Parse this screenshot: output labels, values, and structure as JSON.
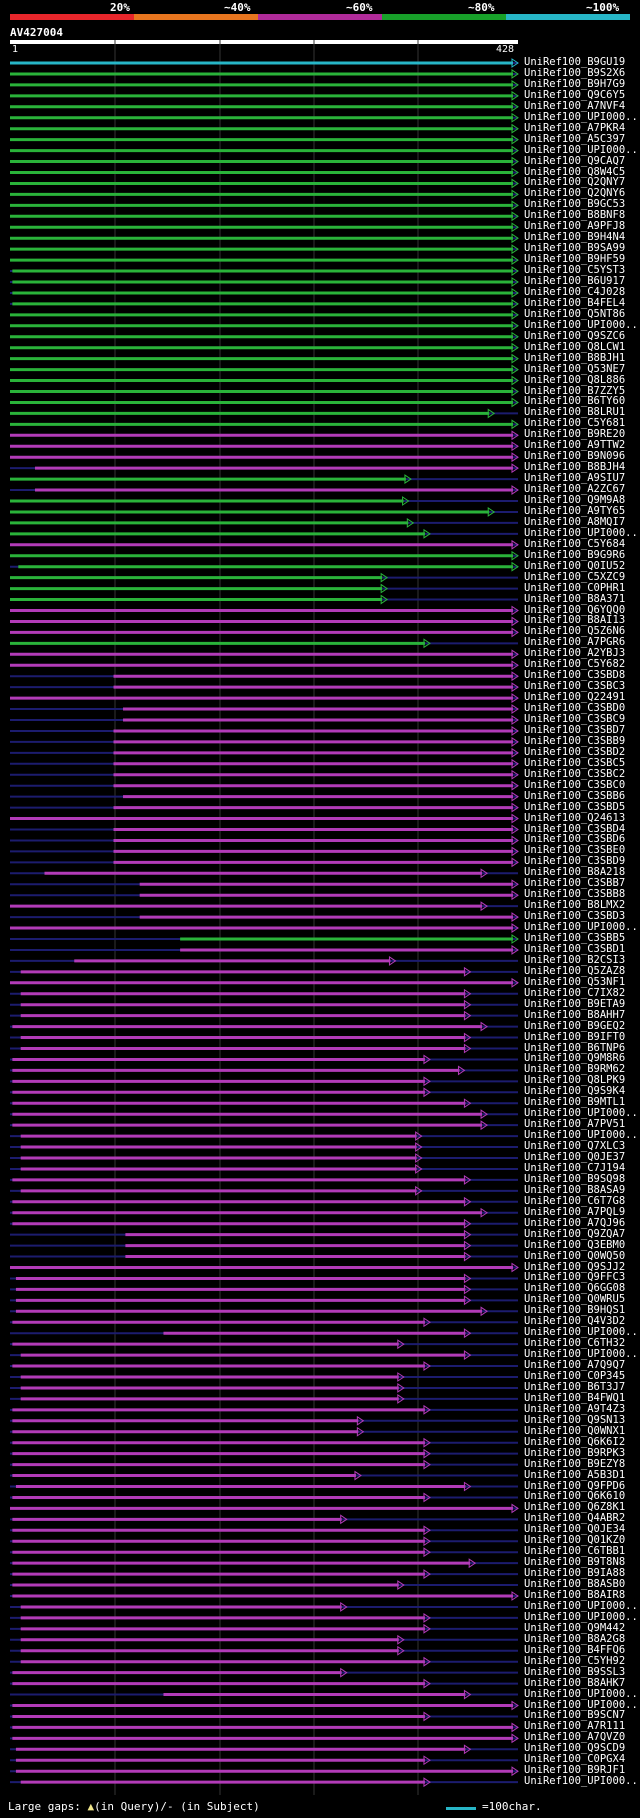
{
  "query": {
    "name": "AV427004",
    "start": "1",
    "end": "428",
    "length": 428
  },
  "identity_scale": {
    "labels": [
      "20%",
      "~40%",
      "~60%",
      "~80%",
      "~100%"
    ],
    "colors": [
      "#e8262b",
      "#e8761f",
      "#b12b9a",
      "#18a12a",
      "#27b6c7"
    ]
  },
  "track_colors": {
    "cyan": "#27b6c7",
    "green": "#2ab33a",
    "magenta": "#b23bb8",
    "dim": "#1c1c6e",
    "red": "#b21818"
  },
  "hits": [
    {
      "name": "UniRef100_B9GU19",
      "start": 1,
      "end": 428,
      "color": "cyan"
    },
    {
      "name": "UniRef100_B9S2X6",
      "start": 1,
      "end": 428,
      "color": "green"
    },
    {
      "name": "UniRef100_B9H7G9",
      "start": 1,
      "end": 428,
      "color": "green"
    },
    {
      "name": "UniRef100_Q9C6Y5",
      "start": 1,
      "end": 428,
      "color": "green"
    },
    {
      "name": "UniRef100_A7NVF4",
      "start": 1,
      "end": 428,
      "color": "green"
    },
    {
      "name": "UniRef100_UPI000...",
      "start": 1,
      "end": 428,
      "color": "green"
    },
    {
      "name": "UniRef100_A7PKR4",
      "start": 1,
      "end": 428,
      "color": "green"
    },
    {
      "name": "UniRef100_A5C397",
      "start": 1,
      "end": 428,
      "color": "green"
    },
    {
      "name": "UniRef100_UPI000...",
      "start": 1,
      "end": 428,
      "color": "green"
    },
    {
      "name": "UniRef100_Q9CAQ7",
      "start": 1,
      "end": 428,
      "color": "green"
    },
    {
      "name": "UniRef100_Q8W4C5",
      "start": 1,
      "end": 428,
      "color": "green"
    },
    {
      "name": "UniRef100_Q2QNY7",
      "start": 1,
      "end": 428,
      "color": "green"
    },
    {
      "name": "UniRef100_Q2QNY6",
      "start": 1,
      "end": 428,
      "color": "green"
    },
    {
      "name": "UniRef100_B9GC53",
      "start": 1,
      "end": 428,
      "color": "green"
    },
    {
      "name": "UniRef100_B8BNF8",
      "start": 1,
      "end": 428,
      "color": "green"
    },
    {
      "name": "UniRef100_A9PFJ8",
      "start": 1,
      "end": 428,
      "color": "green"
    },
    {
      "name": "UniRef100_B9H4N4",
      "start": 1,
      "end": 428,
      "color": "green"
    },
    {
      "name": "UniRef100_B9SA99",
      "start": 1,
      "end": 428,
      "color": "green"
    },
    {
      "name": "UniRef100_B9HF59",
      "start": 1,
      "end": 428,
      "color": "green"
    },
    {
      "name": "UniRef100_C5YST3",
      "start": 3,
      "end": 428,
      "color": "green"
    },
    {
      "name": "UniRef100_B6U917",
      "start": 3,
      "end": 428,
      "color": "green"
    },
    {
      "name": "UniRef100_C4J028",
      "start": 3,
      "end": 428,
      "color": "green"
    },
    {
      "name": "UniRef100_B4FEL4",
      "start": 3,
      "end": 428,
      "color": "green"
    },
    {
      "name": "UniRef100_Q5NT86",
      "start": 1,
      "end": 428,
      "color": "green"
    },
    {
      "name": "UniRef100_UPI000...",
      "start": 1,
      "end": 428,
      "color": "green"
    },
    {
      "name": "UniRef100_Q9SZC6",
      "start": 1,
      "end": 428,
      "color": "green"
    },
    {
      "name": "UniRef100_Q8LCW1",
      "start": 1,
      "end": 428,
      "color": "green"
    },
    {
      "name": "UniRef100_B8BJH1",
      "start": 1,
      "end": 428,
      "color": "green"
    },
    {
      "name": "UniRef100_Q53NE7",
      "start": 1,
      "end": 428,
      "color": "green"
    },
    {
      "name": "UniRef100_Q8L886",
      "start": 1,
      "end": 428,
      "color": "green"
    },
    {
      "name": "UniRef100_B7ZZY5",
      "start": 1,
      "end": 428,
      "color": "green"
    },
    {
      "name": "UniRef100_B6TY60",
      "start": 1,
      "end": 428,
      "color": "green"
    },
    {
      "name": "UniRef100_B8LRU1",
      "start": 1,
      "end": 408,
      "color": "green"
    },
    {
      "name": "UniRef100_C5Y681",
      "start": 1,
      "end": 428,
      "color": "green"
    },
    {
      "name": "UniRef100_B9RE20",
      "start": 1,
      "end": 428,
      "color": "magenta"
    },
    {
      "name": "UniRef100_A9TTW2",
      "start": 1,
      "end": 428,
      "color": "magenta"
    },
    {
      "name": "UniRef100_B9N096",
      "start": 1,
      "end": 428,
      "color": "magenta"
    },
    {
      "name": "UniRef100_B8BJH4",
      "start": 22,
      "end": 428,
      "color": "magenta"
    },
    {
      "name": "UniRef100_A9SIU7",
      "start": 1,
      "end": 338,
      "color": "green"
    },
    {
      "name": "UniRef100_A2ZC67",
      "start": 22,
      "end": 428,
      "color": "magenta"
    },
    {
      "name": "UniRef100_Q9M9A8",
      "start": 1,
      "end": 336,
      "color": "green"
    },
    {
      "name": "UniRef100_A9TY65",
      "start": 1,
      "end": 408,
      "color": "green"
    },
    {
      "name": "UniRef100_A8MQI7",
      "start": 1,
      "end": 340,
      "color": "green"
    },
    {
      "name": "UniRef100_UPI000...",
      "start": 1,
      "end": 354,
      "color": "green"
    },
    {
      "name": "UniRef100_C5Y684",
      "start": 1,
      "end": 428,
      "color": "magenta"
    },
    {
      "name": "UniRef100_B9G9R6",
      "start": 1,
      "end": 428,
      "color": "green"
    },
    {
      "name": "UniRef100_Q0IU52",
      "start": 8,
      "end": 428,
      "color": "green"
    },
    {
      "name": "UniRef100_C5XZC9",
      "start": 1,
      "end": 318,
      "color": "green"
    },
    {
      "name": "UniRef100_C0PHR1",
      "start": 1,
      "end": 318,
      "color": "green"
    },
    {
      "name": "UniRef100_B8A371",
      "start": 1,
      "end": 318,
      "color": "green"
    },
    {
      "name": "UniRef100_Q6YQQ0",
      "start": 1,
      "end": 428,
      "color": "magenta"
    },
    {
      "name": "UniRef100_B8AI13",
      "start": 1,
      "end": 428,
      "color": "magenta"
    },
    {
      "name": "UniRef100_Q5Z6N6",
      "start": 1,
      "end": 428,
      "color": "magenta"
    },
    {
      "name": "UniRef100_A7PGR6",
      "start": 1,
      "end": 354,
      "color": "green"
    },
    {
      "name": "UniRef100_A2YBJ3",
      "start": 1,
      "end": 428,
      "color": "magenta"
    },
    {
      "name": "UniRef100_C5Y682",
      "start": 1,
      "end": 428,
      "color": "magenta"
    },
    {
      "name": "UniRef100_C3SBD8",
      "start": 88,
      "end": 428,
      "color": "magenta"
    },
    {
      "name": "UniRef100_C3SBC3",
      "start": 88,
      "end": 428,
      "color": "magenta"
    },
    {
      "name": "UniRef100_Q22491",
      "start": 1,
      "end": 428,
      "color": "magenta"
    },
    {
      "name": "UniRef100_C3SBD0",
      "start": 96,
      "end": 428,
      "color": "magenta"
    },
    {
      "name": "UniRef100_C3SBC9",
      "start": 96,
      "end": 428,
      "color": "magenta"
    },
    {
      "name": "UniRef100_C3SBD7",
      "start": 88,
      "end": 428,
      "color": "magenta"
    },
    {
      "name": "UniRef100_C3SBB9",
      "start": 88,
      "end": 428,
      "color": "magenta"
    },
    {
      "name": "UniRef100_C3SBD2",
      "start": 88,
      "end": 428,
      "color": "magenta"
    },
    {
      "name": "UniRef100_C3SBC5",
      "start": 88,
      "end": 428,
      "color": "magenta"
    },
    {
      "name": "UniRef100_C3SBC2",
      "start": 88,
      "end": 428,
      "color": "magenta"
    },
    {
      "name": "UniRef100_C3SBC0",
      "start": 88,
      "end": 428,
      "color": "magenta"
    },
    {
      "name": "UniRef100_C3SBB6",
      "start": 96,
      "end": 428,
      "color": "magenta"
    },
    {
      "name": "UniRef100_C3SBD5",
      "start": 88,
      "end": 428,
      "color": "magenta"
    },
    {
      "name": "UniRef100_Q24613",
      "start": 1,
      "end": 428,
      "color": "magenta"
    },
    {
      "name": "UniRef100_C3SBD4",
      "start": 88,
      "end": 428,
      "color": "magenta"
    },
    {
      "name": "UniRef100_C3SBD6",
      "start": 88,
      "end": 428,
      "color": "magenta"
    },
    {
      "name": "UniRef100_C3SBE0",
      "start": 88,
      "end": 428,
      "color": "magenta"
    },
    {
      "name": "UniRef100_C3SBD9",
      "start": 88,
      "end": 428,
      "color": "magenta"
    },
    {
      "name": "UniRef100_B8A218",
      "start": 30,
      "end": 402,
      "color": "magenta"
    },
    {
      "name": "UniRef100_C3SBB7",
      "start": 110,
      "end": 428,
      "color": "magenta"
    },
    {
      "name": "UniRef100_C3SBB8",
      "start": 110,
      "end": 428,
      "color": "magenta"
    },
    {
      "name": "UniRef100_B8LMX2",
      "start": 1,
      "end": 402,
      "color": "magenta"
    },
    {
      "name": "UniRef100_C3SBD3",
      "start": 110,
      "end": 428,
      "color": "magenta"
    },
    {
      "name": "UniRef100_UPI000...",
      "start": 1,
      "end": 428,
      "color": "magenta"
    },
    {
      "name": "UniRef100_C3SBB5",
      "start": 144,
      "end": 428,
      "color": "green"
    },
    {
      "name": "UniRef100_C3SBD1",
      "start": 144,
      "end": 428,
      "color": "magenta"
    },
    {
      "name": "UniRef100_B2CSI3",
      "start": 55,
      "end": 325,
      "color": "magenta"
    },
    {
      "name": "UniRef100_Q5ZAZ8",
      "start": 10,
      "end": 388,
      "color": "magenta"
    },
    {
      "name": "UniRef100_Q53NF1",
      "start": 1,
      "end": 428,
      "color": "magenta"
    },
    {
      "name": "UniRef100_C7IX82",
      "start": 10,
      "end": 388,
      "color": "magenta"
    },
    {
      "name": "UniRef100_B9ETA9",
      "start": 10,
      "end": 388,
      "color": "magenta"
    },
    {
      "name": "UniRef100_B8AHH7",
      "start": 10,
      "end": 388,
      "color": "magenta"
    },
    {
      "name": "UniRef100_B9GEQ2",
      "start": 3,
      "end": 402,
      "color": "magenta"
    },
    {
      "name": "UniRef100_B9IFT0",
      "start": 10,
      "end": 388,
      "color": "magenta"
    },
    {
      "name": "UniRef100_B6TNP6",
      "start": 10,
      "end": 388,
      "color": "magenta"
    },
    {
      "name": "UniRef100_Q9M8R6",
      "start": 3,
      "end": 354,
      "color": "magenta"
    },
    {
      "name": "UniRef100_B9RM62",
      "start": 3,
      "end": 383,
      "color": "magenta"
    },
    {
      "name": "UniRef100_Q8LPK9",
      "start": 3,
      "end": 354,
      "color": "magenta"
    },
    {
      "name": "UniRef100_Q9S9K4",
      "start": 3,
      "end": 354,
      "color": "magenta"
    },
    {
      "name": "UniRef100_B9MTL1",
      "start": 3,
      "end": 388,
      "color": "magenta"
    },
    {
      "name": "UniRef100_UPI000...",
      "start": 3,
      "end": 402,
      "color": "magenta"
    },
    {
      "name": "UniRef100_A7PV51",
      "start": 3,
      "end": 402,
      "color": "magenta"
    },
    {
      "name": "UniRef100_UPI000...",
      "start": 10,
      "end": 347,
      "color": "magenta"
    },
    {
      "name": "UniRef100_Q7XLC3",
      "start": 10,
      "end": 347,
      "color": "magenta"
    },
    {
      "name": "UniRef100_Q0JE37",
      "start": 10,
      "end": 347,
      "color": "magenta"
    },
    {
      "name": "UniRef100_C7J194",
      "start": 10,
      "end": 347,
      "color": "magenta"
    },
    {
      "name": "UniRef100_B9SQ98",
      "start": 3,
      "end": 388,
      "color": "magenta"
    },
    {
      "name": "UniRef100_B8ASA9",
      "start": 10,
      "end": 347,
      "color": "magenta"
    },
    {
      "name": "UniRef100_C6T7G8",
      "start": 3,
      "end": 388,
      "color": "magenta"
    },
    {
      "name": "UniRef100_A7PQL9",
      "start": 3,
      "end": 402,
      "color": "magenta"
    },
    {
      "name": "UniRef100_A7QJ96",
      "start": 3,
      "end": 388,
      "color": "magenta"
    },
    {
      "name": "UniRef100_Q9ZQA7",
      "start": 98,
      "end": 388,
      "color": "magenta"
    },
    {
      "name": "UniRef100_Q3EBM0",
      "start": 98,
      "end": 388,
      "color": "magenta"
    },
    {
      "name": "UniRef100_Q0WQ50",
      "start": 98,
      "end": 388,
      "color": "magenta"
    },
    {
      "name": "UniRef100_Q9SJJ2",
      "start": 1,
      "end": 428,
      "color": "magenta"
    },
    {
      "name": "UniRef100_Q9FFC3",
      "start": 6,
      "end": 388,
      "color": "magenta"
    },
    {
      "name": "UniRef100_Q6GG08",
      "start": 6,
      "end": 388,
      "color": "magenta"
    },
    {
      "name": "UniRef100_Q0WRU5",
      "start": 6,
      "end": 388,
      "color": "magenta"
    },
    {
      "name": "UniRef100_B9HQS1",
      "start": 6,
      "end": 402,
      "color": "magenta"
    },
    {
      "name": "UniRef100_Q4V3D2",
      "start": 3,
      "end": 354,
      "color": "magenta"
    },
    {
      "name": "UniRef100_UPI000...",
      "start": 130,
      "end": 388,
      "color": "magenta"
    },
    {
      "name": "UniRef100_C6TH32",
      "start": 3,
      "end": 332,
      "color": "magenta"
    },
    {
      "name": "UniRef100_UPI000...",
      "start": 10,
      "end": 388,
      "color": "magenta"
    },
    {
      "name": "UniRef100_A7Q9Q7",
      "start": 3,
      "end": 354,
      "color": "magenta"
    },
    {
      "name": "UniRef100_C0P345",
      "start": 10,
      "end": 332,
      "color": "magenta"
    },
    {
      "name": "UniRef100_B6T3J7",
      "start": 10,
      "end": 332,
      "color": "magenta"
    },
    {
      "name": "UniRef100_B4FWQ1",
      "start": 10,
      "end": 332,
      "color": "magenta"
    },
    {
      "name": "UniRef100_A9T4Z3",
      "start": 3,
      "end": 354,
      "color": "magenta"
    },
    {
      "name": "UniRef100_Q9SN13",
      "start": 3,
      "end": 298,
      "color": "magenta"
    },
    {
      "name": "UniRef100_Q0WNX1",
      "start": 3,
      "end": 298,
      "color": "magenta"
    },
    {
      "name": "UniRef100_Q6K6I2",
      "start": 3,
      "end": 354,
      "color": "magenta"
    },
    {
      "name": "UniRef100_B9RPK3",
      "start": 3,
      "end": 354,
      "color": "magenta"
    },
    {
      "name": "UniRef100_B9EZY8",
      "start": 3,
      "end": 354,
      "color": "magenta"
    },
    {
      "name": "UniRef100_A5B3D1",
      "start": 3,
      "end": 296,
      "color": "magenta"
    },
    {
      "name": "UniRef100_Q9FPD6",
      "start": 6,
      "end": 388,
      "color": "magenta"
    },
    {
      "name": "UniRef100_Q6K610",
      "start": 3,
      "end": 354,
      "color": "magenta"
    },
    {
      "name": "UniRef100_Q6Z8K1",
      "start": 1,
      "end": 428,
      "color": "magenta"
    },
    {
      "name": "UniRef100_Q4ABR2",
      "start": 3,
      "end": 284,
      "color": "magenta"
    },
    {
      "name": "UniRef100_Q0JE34",
      "start": 3,
      "end": 354,
      "color": "magenta"
    },
    {
      "name": "UniRef100_Q01KZ0",
      "start": 3,
      "end": 354,
      "color": "magenta"
    },
    {
      "name": "UniRef100_C6TBB1",
      "start": 3,
      "end": 354,
      "color": "magenta"
    },
    {
      "name": "UniRef100_B9T8N8",
      "start": 3,
      "end": 392,
      "color": "magenta"
    },
    {
      "name": "UniRef100_B9IA88",
      "start": 3,
      "end": 354,
      "color": "magenta"
    },
    {
      "name": "UniRef100_B8ASB0",
      "start": 3,
      "end": 332,
      "color": "magenta"
    },
    {
      "name": "UniRef100_B8AIR8",
      "start": 3,
      "end": 428,
      "color": "magenta"
    },
    {
      "name": "UniRef100_UPI000...",
      "start": 10,
      "end": 284,
      "color": "magenta"
    },
    {
      "name": "UniRef100_UPI000...",
      "start": 10,
      "end": 354,
      "color": "magenta"
    },
    {
      "name": "UniRef100_Q9M442",
      "start": 10,
      "end": 354,
      "color": "magenta"
    },
    {
      "name": "UniRef100_B8A2G8",
      "start": 10,
      "end": 332,
      "color": "magenta"
    },
    {
      "name": "UniRef100_B4FFQ6",
      "start": 10,
      "end": 332,
      "color": "magenta"
    },
    {
      "name": "UniRef100_C5YH92",
      "start": 10,
      "end": 354,
      "color": "magenta"
    },
    {
      "name": "UniRef100_B9SSL3",
      "start": 3,
      "end": 284,
      "color": "magenta"
    },
    {
      "name": "UniRef100_B8AHK7",
      "start": 3,
      "end": 354,
      "color": "magenta"
    },
    {
      "name": "UniRef100_UPI000...",
      "start": 130,
      "end": 388,
      "color": "magenta"
    },
    {
      "name": "UniRef100_UPI000...",
      "start": 3,
      "end": 428,
      "color": "magenta"
    },
    {
      "name": "UniRef100_B9SCN7",
      "start": 3,
      "end": 354,
      "color": "magenta"
    },
    {
      "name": "UniRef100_A7R111",
      "start": 3,
      "end": 428,
      "color": "magenta"
    },
    {
      "name": "UniRef100_A7QVZ0",
      "start": 3,
      "end": 428,
      "color": "magenta"
    },
    {
      "name": "UniRef100_Q9SCD9",
      "start": 6,
      "end": 388,
      "color": "magenta"
    },
    {
      "name": "UniRef100_C0PGX4",
      "start": 6,
      "end": 354,
      "color": "magenta"
    },
    {
      "name": "UniRef100_B9RJF1",
      "start": 6,
      "end": 428,
      "color": "magenta"
    },
    {
      "name": "UniRef100_UPI000...",
      "start": 10,
      "end": 354,
      "color": "magenta"
    }
  ],
  "footer": {
    "large_gaps_label": "Large gaps:",
    "in_query": "(in Query)/",
    "dash": "-",
    "in_subject": "(in Subject)",
    "scale_label": "=100char."
  }
}
